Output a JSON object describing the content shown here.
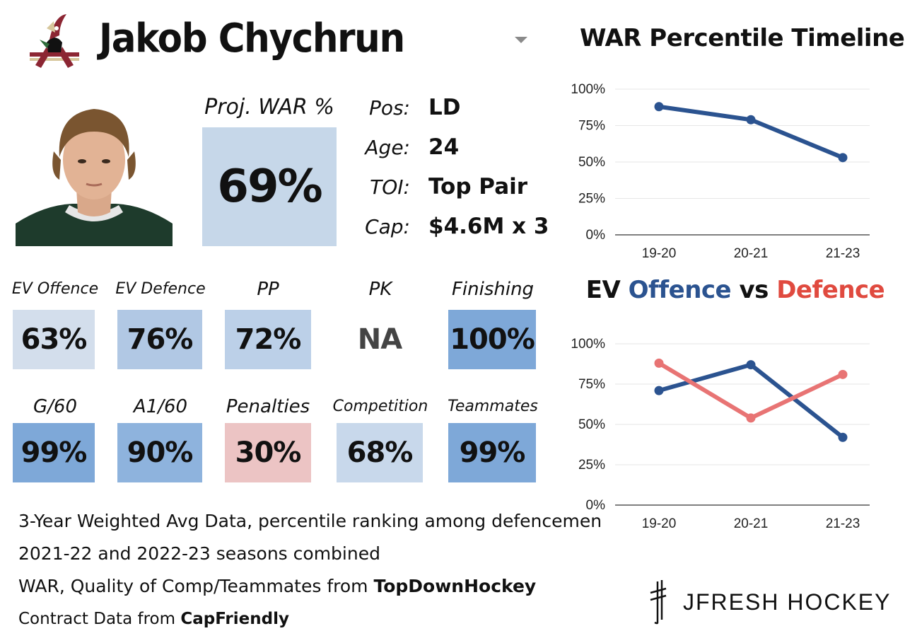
{
  "player": {
    "name": "Jakob Chychrun",
    "proj_war_label": "Proj. WAR %",
    "proj_war_value": "69%",
    "info": [
      {
        "label": "Pos:",
        "value": "LD"
      },
      {
        "label": "Age:",
        "value": "24"
      },
      {
        "label": "TOI:",
        "value": "Top Pair"
      },
      {
        "label": "Cap:",
        "value": "$4.6M x 3"
      }
    ]
  },
  "stats_row1": [
    {
      "label": "EV Offence",
      "value": "63%",
      "color": "#d3deec"
    },
    {
      "label": "EV Defence",
      "value": "76%",
      "color": "#b1c8e4"
    },
    {
      "label": "PP",
      "value": "72%",
      "color": "#bcd0e8"
    },
    {
      "label": "PK",
      "value": "NA",
      "color": "#ffffff"
    },
    {
      "label": "Finishing",
      "value": "100%",
      "color": "#7ea8d8"
    }
  ],
  "stats_row2": [
    {
      "label": "G/60",
      "value": "99%",
      "color": "#7ea8d8"
    },
    {
      "label": "A1/60",
      "value": "90%",
      "color": "#8eb3dd"
    },
    {
      "label": "Penalties",
      "value": "30%",
      "color": "#ecc4c4"
    },
    {
      "label": "Competition",
      "value": "68%",
      "color": "#c8d8eb"
    },
    {
      "label": "Teammates",
      "value": "99%",
      "color": "#7ea8d8"
    }
  ],
  "footer": {
    "line1": "3-Year Weighted Avg Data, percentile ranking among defencemen",
    "line2": "2021-22 and 2022-23 seasons combined",
    "line3_prefix": "WAR, Quality of Comp/Teammates from ",
    "line3_source": "TopDownHockey",
    "line4_prefix": "Contract Data from ",
    "line4_source": "CapFriendly"
  },
  "brand": "JFRESH HOCKEY",
  "colors": {
    "blue": "#2b5390",
    "red": "#e05050",
    "red_line": "#e87474",
    "grid": "#e6e6e6"
  },
  "chart_data": [
    {
      "type": "line",
      "title": "WAR Percentile Timeline",
      "categories": [
        "19-20",
        "20-21",
        "21-23"
      ],
      "series": [
        {
          "values": [
            88,
            79,
            53
          ]
        }
      ],
      "yticks": [
        "0%",
        "25%",
        "50%",
        "75%",
        "100%"
      ],
      "ylim": [
        0,
        100
      ]
    },
    {
      "type": "line",
      "title": "EV Offence vs Defence",
      "title_parts": [
        "EV ",
        "Offence",
        " vs ",
        "Defence"
      ],
      "categories": [
        "19-20",
        "20-21",
        "21-23"
      ],
      "series": [
        {
          "name": "Offence",
          "values": [
            71,
            87,
            42
          ]
        },
        {
          "name": "Defence",
          "values": [
            88,
            54,
            81
          ]
        }
      ],
      "yticks": [
        "0%",
        "25%",
        "50%",
        "75%",
        "100%"
      ],
      "ylim": [
        0,
        100
      ]
    }
  ]
}
